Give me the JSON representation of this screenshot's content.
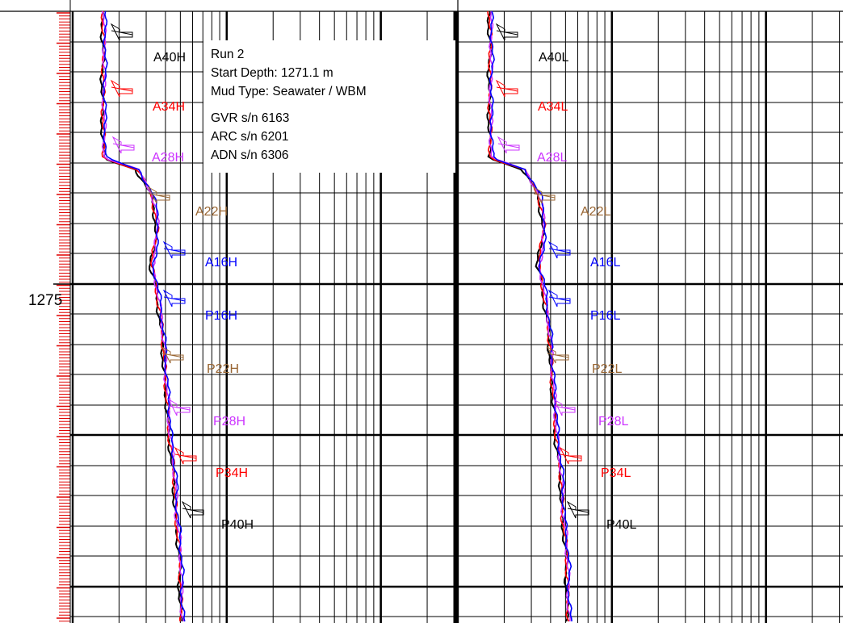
{
  "chart_data": {
    "type": "line",
    "depth_label": "1275",
    "annotation": [
      "Run 2",
      "Start Depth: 1271.1 m",
      "Mud Type: Seawater / WBM",
      "GVR s/n 6163",
      "ARC s/n 6201",
      "ADN s/n 6306"
    ],
    "tracks": [
      {
        "curve_labels": [
          {
            "text": "A40H",
            "color": "#000000"
          },
          {
            "text": "A34H",
            "color": "#ff0000"
          },
          {
            "text": "A28H",
            "color": "#cc33ff"
          },
          {
            "text": "A22H",
            "color": "#996633"
          },
          {
            "text": "A16H",
            "color": "#0000ff"
          },
          {
            "text": "P16H",
            "color": "#0000ff"
          },
          {
            "text": "P22H",
            "color": "#996633"
          },
          {
            "text": "P28H",
            "color": "#cc33ff"
          },
          {
            "text": "P34H",
            "color": "#ff0000"
          },
          {
            "text": "P40H",
            "color": "#000000"
          }
        ]
      },
      {
        "curve_labels": [
          {
            "text": "A40L",
            "color": "#000000"
          },
          {
            "text": "A34L",
            "color": "#ff0000"
          },
          {
            "text": "A28L",
            "color": "#cc33ff"
          },
          {
            "text": "A22L",
            "color": "#996633"
          },
          {
            "text": "A16L",
            "color": "#0000ff"
          },
          {
            "text": "P16L",
            "color": "#0000ff"
          },
          {
            "text": "P22L",
            "color": "#996633"
          },
          {
            "text": "P28L",
            "color": "#cc33ff"
          },
          {
            "text": "P34L",
            "color": "#ff0000"
          },
          {
            "text": "P40L",
            "color": "#000000"
          }
        ]
      }
    ],
    "series_colors": [
      "#000000",
      "#ff0000",
      "#cc33ff",
      "#0000ff"
    ],
    "grid": true
  }
}
